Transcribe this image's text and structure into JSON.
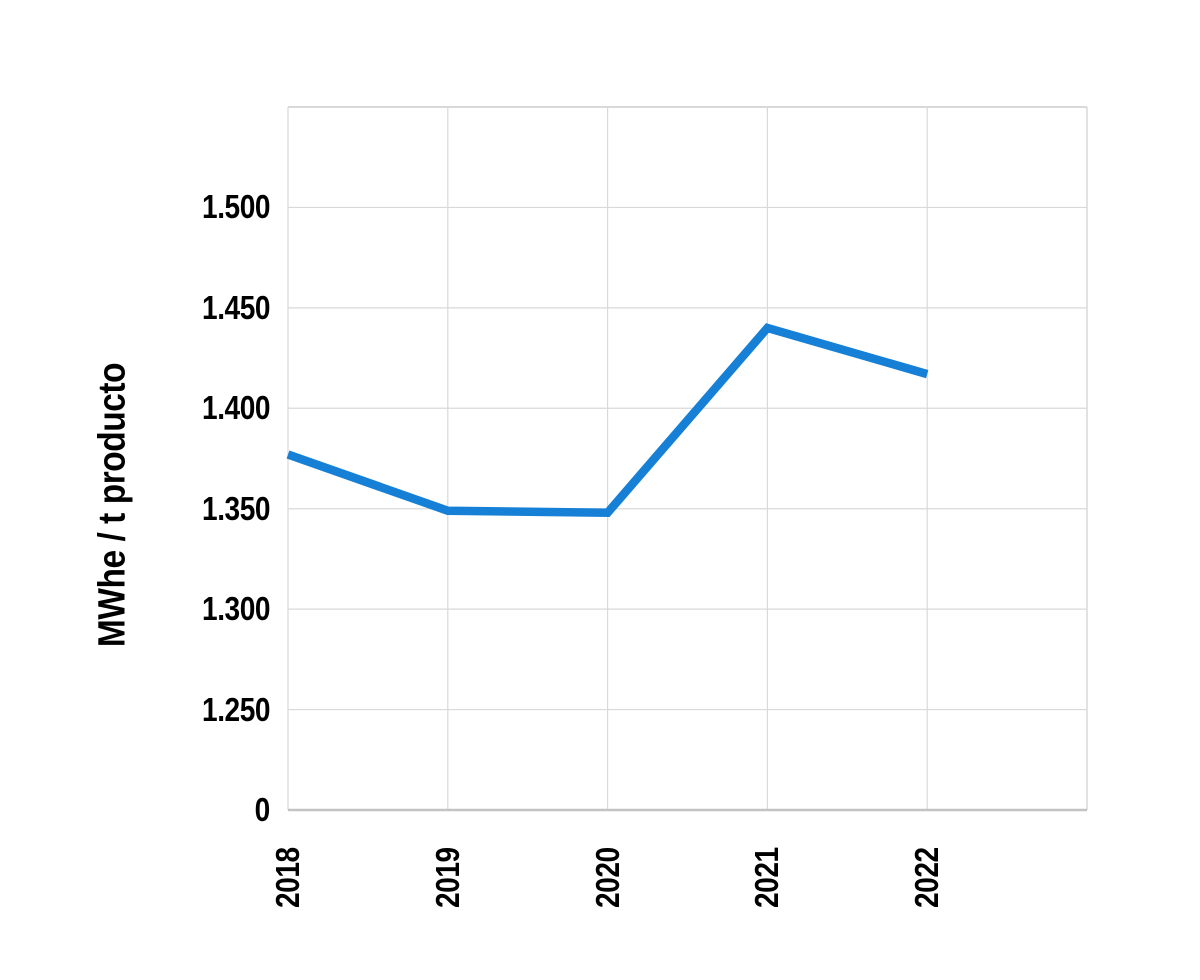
{
  "chart_data": {
    "type": "line",
    "categories": [
      "2018",
      "2019",
      "2020",
      "2021",
      "2022"
    ],
    "values": [
      1.377,
      1.349,
      1.348,
      1.44,
      1.417
    ],
    "series_count": 1,
    "title": "",
    "xlabel": "",
    "ylabel": "MWhe / t producto",
    "yticks": [
      "1.500",
      "1.450",
      "1.400",
      "1.350",
      "1.300",
      "1.250",
      "0"
    ],
    "ytick_values": [
      1.5,
      1.45,
      1.4,
      1.35,
      1.3,
      1.25,
      0
    ],
    "ytick_step": 0.05,
    "ylim_plot": [
      1.25,
      1.55
    ],
    "baseline_label": "0",
    "grid": true,
    "legend": false,
    "colors": {
      "line": "#1680D6",
      "gridline": "#D9D9D9",
      "plot_border": "#D9D9D9",
      "axis_baseline": "#C3C3C3",
      "text": "#000000",
      "background": "#FFFFFF"
    }
  }
}
